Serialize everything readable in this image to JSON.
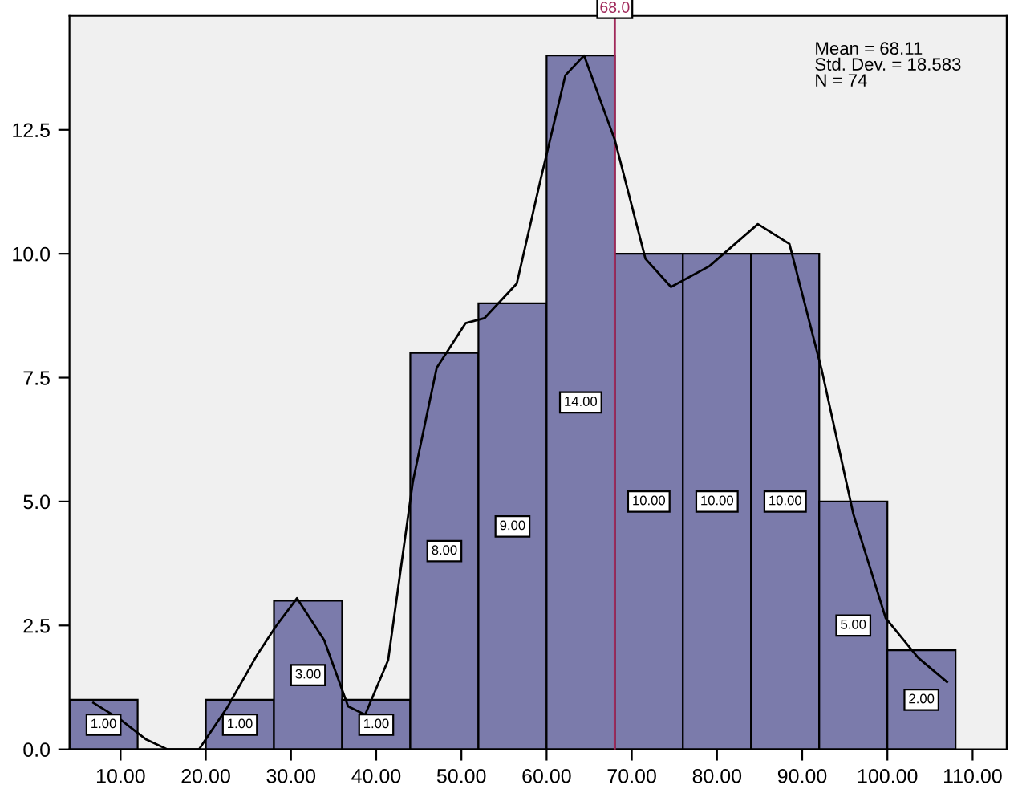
{
  "chart_data": {
    "type": "histogram",
    "bins": [
      4,
      12,
      20,
      28,
      36,
      44,
      52,
      60,
      68,
      76,
      84,
      92,
      100,
      108
    ],
    "values": [
      1,
      0,
      1,
      3,
      1,
      8,
      9,
      14,
      10,
      10,
      10,
      5,
      2
    ],
    "value_labels": [
      "1.00",
      null,
      "1.00",
      "3.00",
      "1.00",
      "8.00",
      "9.00",
      "14.00",
      "10.00",
      "10.00",
      "10.00",
      "5.00",
      "2.00"
    ],
    "color": "#7b7bab",
    "series": [
      {
        "type": "line",
        "color": "#000000",
        "x": [
          6.8,
          10,
          13,
          15.5,
          19.2,
          22.6,
          26,
          28.3,
          30.7,
          33.9,
          36.7,
          38.7,
          41.4,
          44.3,
          47.1,
          50.5,
          52.7,
          56.5,
          59.3,
          62.2,
          64.4,
          68,
          71.6,
          74.6,
          79.1,
          84.8,
          88.5,
          92.3,
          96,
          99.8,
          103.6,
          107
        ],
        "values": [
          0.94,
          0.6,
          0.2,
          0,
          0,
          0.87,
          1.9,
          2.5,
          3.05,
          2.2,
          0.87,
          0.7,
          1.8,
          5.4,
          7.7,
          8.6,
          8.7,
          9.4,
          11.5,
          13.6,
          14.0,
          12.3,
          9.9,
          9.33,
          9.75,
          10.6,
          10.2,
          7.65,
          4.75,
          2.65,
          1.85,
          1.36
        ]
      }
    ],
    "ref_lines": [
      {
        "axis": "x",
        "value": 68,
        "label": "68.0",
        "color": "#a0285a"
      }
    ],
    "annotations": [
      "Mean = 68.11\nStd. Dev. = 18.583\nN = 74"
    ],
    "xlim": [
      4,
      114
    ],
    "ylim": [
      0,
      14.8
    ],
    "xticks": [
      {
        "value": 10,
        "label": "10.00"
      },
      {
        "value": 20,
        "label": "20.00"
      },
      {
        "value": 30,
        "label": "30.00"
      },
      {
        "value": 40,
        "label": "40.00"
      },
      {
        "value": 50,
        "label": "50.00"
      },
      {
        "value": 60,
        "label": "60.00"
      },
      {
        "value": 70,
        "label": "70.00"
      },
      {
        "value": 80,
        "label": "80.00"
      },
      {
        "value": 90,
        "label": "90.00"
      },
      {
        "value": 100,
        "label": "100.00"
      },
      {
        "value": 110,
        "label": "110.00"
      }
    ],
    "yticks": [
      {
        "value": 0,
        "label": "0.0"
      },
      {
        "value": 2.5,
        "label": "2.5"
      },
      {
        "value": 5,
        "label": "5.0"
      },
      {
        "value": 7.5,
        "label": "7.5"
      },
      {
        "value": 10,
        "label": "10.0"
      },
      {
        "value": 12.5,
        "label": "12.5"
      }
    ],
    "grid": false,
    "legend": false
  }
}
